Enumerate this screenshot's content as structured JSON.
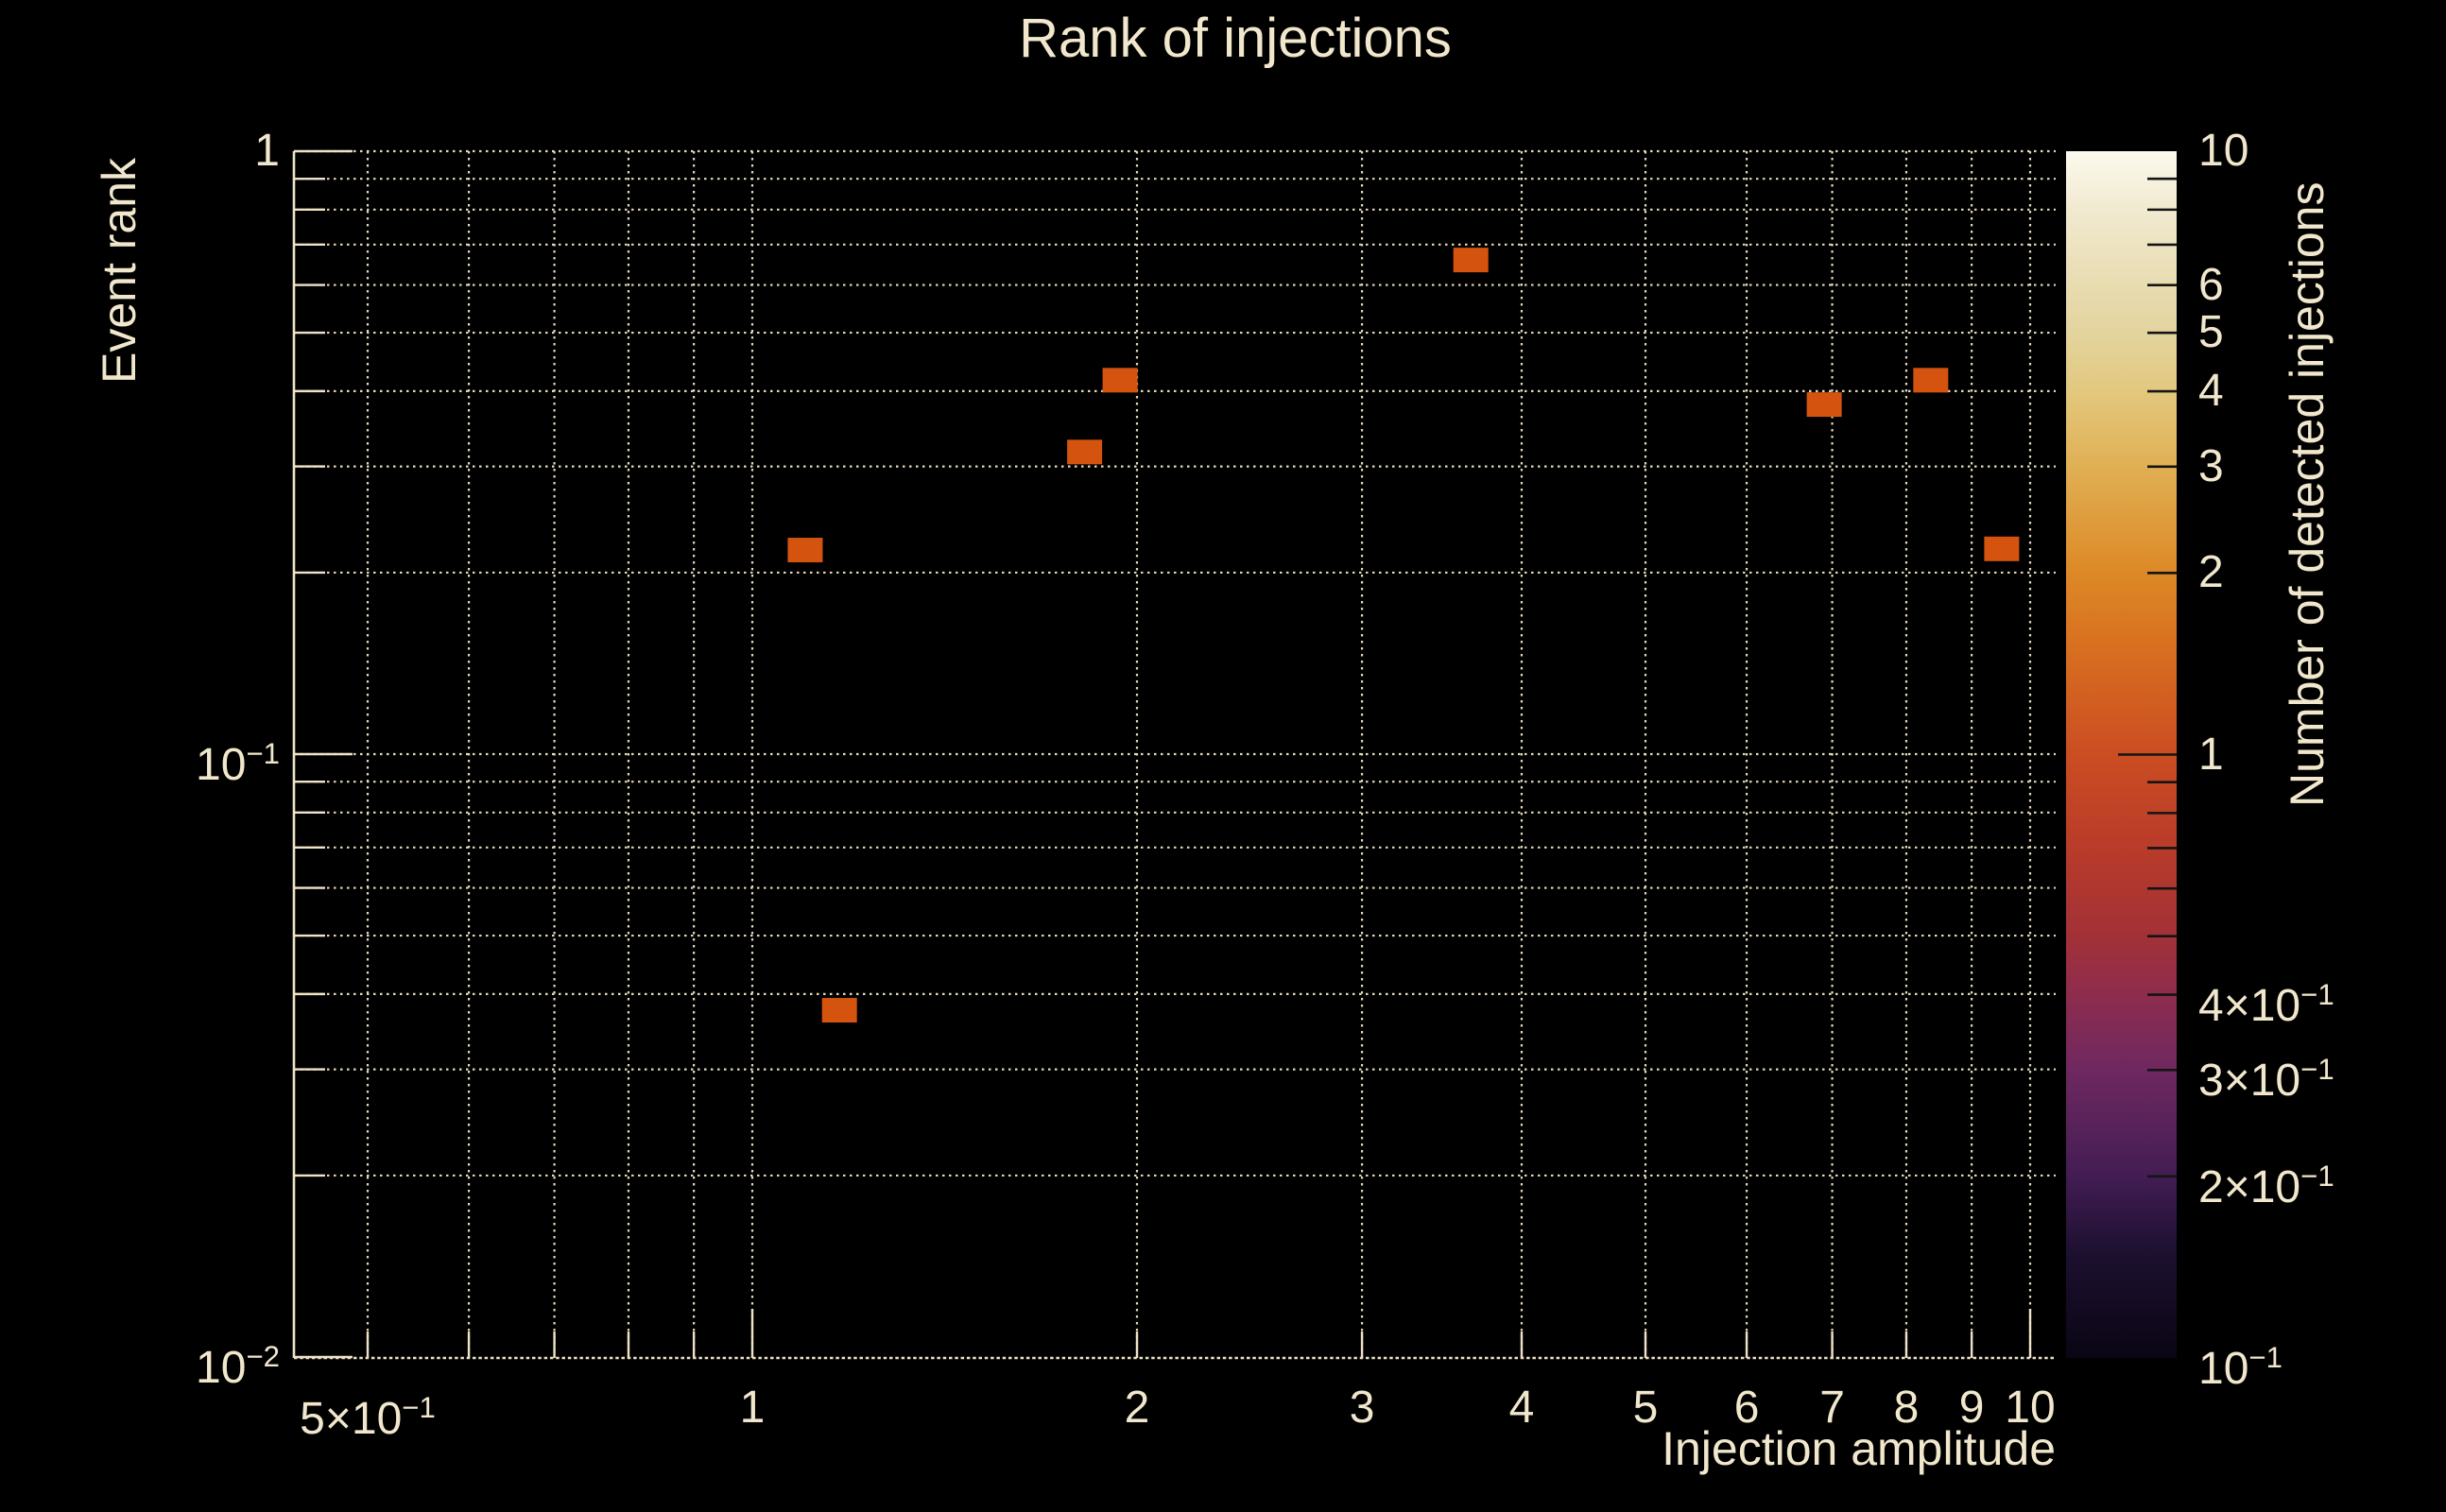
{
  "title": "Rank of injections",
  "colors": {
    "background": "#000000",
    "text": "#f1e7cc",
    "grid": "#e4d9bc",
    "spine": "#eee3c6",
    "cell": "#d4540f",
    "colorbar_tick": "#141414"
  },
  "axes": {
    "x": {
      "label": "Injection amplitude",
      "scale": "log",
      "min": 0.438,
      "max": 10.45,
      "major_ticks": [
        {
          "v": 0.5,
          "label": "5×10^−1"
        },
        {
          "v": 1,
          "label": "1"
        },
        {
          "v": 2,
          "label": "2"
        },
        {
          "v": 3,
          "label": "3"
        },
        {
          "v": 4,
          "label": "4"
        },
        {
          "v": 5,
          "label": "5"
        },
        {
          "v": 6,
          "label": "6"
        },
        {
          "v": 7,
          "label": "7"
        },
        {
          "v": 8,
          "label": "8"
        },
        {
          "v": 9,
          "label": "9"
        },
        {
          "v": 10,
          "label": "10"
        }
      ],
      "minor_ticks": [
        0.6,
        0.7,
        0.8,
        0.9
      ]
    },
    "y": {
      "label": "Event rank",
      "scale": "log",
      "min": 0.01,
      "max": 1,
      "major_ticks": [
        {
          "v": 1,
          "label": "1"
        },
        {
          "v": 0.1,
          "label": "10^−1"
        },
        {
          "v": 0.01,
          "label": "10^−2"
        }
      ],
      "minor_ticks": [
        0.9,
        0.8,
        0.7,
        0.6,
        0.5,
        0.4,
        0.3,
        0.2,
        0.09,
        0.08,
        0.07,
        0.06,
        0.05,
        0.04,
        0.03,
        0.02
      ]
    }
  },
  "colorbar": {
    "label": "Number of detected injections",
    "scale": "log",
    "min": 0.1,
    "max": 10,
    "labeled_ticks": [
      {
        "v": 10,
        "label": "10"
      },
      {
        "v": 6,
        "label": "6"
      },
      {
        "v": 5,
        "label": "5"
      },
      {
        "v": 4,
        "label": "4"
      },
      {
        "v": 3,
        "label": "3"
      },
      {
        "v": 2,
        "label": "2"
      },
      {
        "v": 1,
        "label": "1"
      },
      {
        "v": 0.4,
        "label": "4×10^−1"
      },
      {
        "v": 0.3,
        "label": "3×10^−1"
      },
      {
        "v": 0.2,
        "label": "2×10^−1"
      },
      {
        "v": 0.1,
        "label": "10^−1"
      }
    ],
    "minor_ticks": [
      9,
      8,
      7,
      0.9,
      0.8,
      0.7,
      0.6,
      0.5
    ],
    "gradient": [
      {
        "t": 0.0,
        "c": "#0a0614"
      },
      {
        "t": 0.088,
        "c": "#1d1030"
      },
      {
        "t": 0.151,
        "c": "#431d54"
      },
      {
        "t": 0.239,
        "c": "#6f2860"
      },
      {
        "t": 0.301,
        "c": "#8e2c4e"
      },
      {
        "t": 0.349,
        "c": "#a23137"
      },
      {
        "t": 0.422,
        "c": "#b93b2a"
      },
      {
        "t": 0.5,
        "c": "#cb4d22"
      },
      {
        "t": 0.588,
        "c": "#d86f20"
      },
      {
        "t": 0.651,
        "c": "#dd8926"
      },
      {
        "t": 0.739,
        "c": "#e0b054"
      },
      {
        "t": 0.801,
        "c": "#e3c87e"
      },
      {
        "t": 0.849,
        "c": "#e3d49e"
      },
      {
        "t": 0.889,
        "c": "#e8dcb0"
      },
      {
        "t": 0.952,
        "c": "#f1ead0"
      },
      {
        "t": 1.0,
        "c": "#fcfaee"
      }
    ]
  },
  "chart_data": {
    "type": "heatmap",
    "title": "Rank of injections",
    "xlabel": "Injection amplitude",
    "ylabel": "Event rank",
    "value_label": "Number of detected injections",
    "xlim": [
      0.438,
      10.45
    ],
    "ylim": [
      0.01,
      1
    ],
    "vlim": [
      0.1,
      10
    ],
    "points": [
      {
        "x": 1.1,
        "y": 0.218,
        "count": 1
      },
      {
        "x": 1.17,
        "y": 0.0376,
        "count": 1
      },
      {
        "x": 1.82,
        "y": 0.317,
        "count": 1
      },
      {
        "x": 1.94,
        "y": 0.417,
        "count": 1
      },
      {
        "x": 3.65,
        "y": 0.66,
        "count": 1
      },
      {
        "x": 6.9,
        "y": 0.38,
        "count": 1
      },
      {
        "x": 8.36,
        "y": 0.417,
        "count": 1
      },
      {
        "x": 9.5,
        "y": 0.219,
        "count": 1
      }
    ]
  }
}
